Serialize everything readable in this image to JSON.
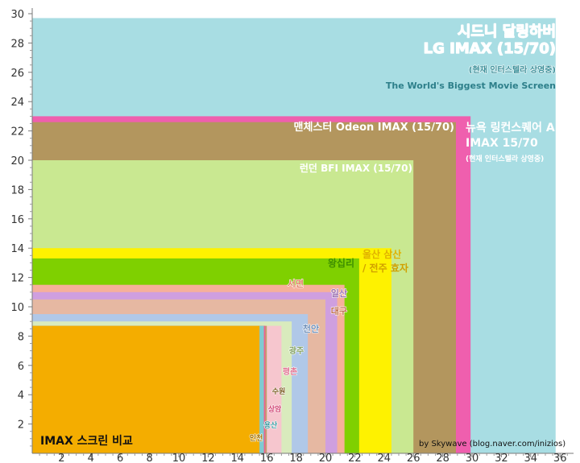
{
  "chart_data": {
    "type": "area",
    "title": "IMAX 스크린 비교",
    "credit": "by Skywave (blog.naver.com/inizios)",
    "xlim": [
      0,
      36
    ],
    "ylim": [
      0,
      30
    ],
    "x_ticks": [
      2,
      4,
      6,
      8,
      10,
      12,
      14,
      16,
      18,
      20,
      22,
      24,
      26,
      28,
      30,
      32,
      34,
      36
    ],
    "y_ticks": [
      2,
      4,
      6,
      8,
      10,
      12,
      14,
      16,
      18,
      20,
      22,
      24,
      26,
      28,
      30
    ],
    "grid": false,
    "screens": [
      {
        "id": "sydney",
        "width": 35.7,
        "height": 29.7,
        "color": "#a8dde3",
        "lines": [
          "시드니 달링하버",
          "LG IMAX (15/70)",
          "(현재 인터스텔라 상영중)",
          "The World's Biggest Movie Screen"
        ]
      },
      {
        "id": "newyork",
        "width": 29.9,
        "height": 23.0,
        "color": "#ef5fae",
        "lines": [
          "뉴욕 링컨스퀘어 AMC",
          "IMAX 15/70",
          "(현재 인터스텔라 상영중)"
        ]
      },
      {
        "id": "manchester",
        "width": 28.9,
        "height": 22.6,
        "color": "#b3965e",
        "lines": [
          "맨체스터 Odeon IMAX (15/70)"
        ]
      },
      {
        "id": "london",
        "width": 26.0,
        "height": 20.0,
        "color": "#c9e891",
        "lines": [
          "런던 BFI IMAX (15/70)"
        ]
      },
      {
        "id": "ulsan",
        "width": 24.5,
        "height": 14.0,
        "color": "#fef200",
        "lines": [
          "울산 삼산",
          "/ 전주 효자"
        ]
      },
      {
        "id": "wangsimni",
        "width": 22.3,
        "height": 13.3,
        "color": "#7fd000",
        "lines": [
          "왕십리"
        ]
      },
      {
        "id": "seomyeon",
        "width": 21.3,
        "height": 11.5,
        "color": "#f6b09a",
        "lines": [
          "서면"
        ]
      },
      {
        "id": "ilsan",
        "width": 20.8,
        "height": 11.0,
        "color": "#cf9fdf",
        "lines": [
          "일산"
        ]
      },
      {
        "id": "daegu",
        "width": 20.0,
        "height": 10.5,
        "color": "#e6b8a2",
        "lines": [
          "대구"
        ]
      },
      {
        "id": "cheonan",
        "width": 18.8,
        "height": 9.5,
        "color": "#b0c8e8",
        "lines": [
          "천안"
        ]
      },
      {
        "id": "gwangju",
        "width": 17.7,
        "height": 9.0,
        "color": "#d9ebbd",
        "lines": [
          "광주"
        ]
      },
      {
        "id": "pyeongchon",
        "width": 17.0,
        "height": 8.7,
        "color": "#f6c6ce",
        "lines": [
          "평촌"
        ]
      },
      {
        "id": "suwon",
        "width": 16.0,
        "height": 8.7,
        "color": "#bfa06e",
        "lines": [
          "수원"
        ]
      },
      {
        "id": "sangam",
        "width": 15.9,
        "height": 8.7,
        "color": "#f06090",
        "lines": [
          "상암"
        ]
      },
      {
        "id": "yongsan",
        "width": 15.8,
        "height": 8.7,
        "color": "#7fcad0",
        "lines": [
          "용산"
        ]
      },
      {
        "id": "incheon",
        "width": 15.5,
        "height": 8.7,
        "color": "#f4ad00",
        "lines": [
          "인천"
        ]
      }
    ]
  }
}
